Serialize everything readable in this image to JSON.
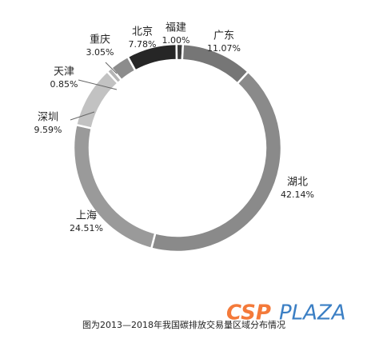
{
  "chart_data": {
    "type": "donut",
    "categories": [
      "福建",
      "广东",
      "湖北",
      "上海",
      "深圳",
      "天津",
      "重庆",
      "北京"
    ],
    "values": [
      1.0,
      11.07,
      42.14,
      24.51,
      9.59,
      0.85,
      3.05,
      7.78
    ],
    "value_labels": [
      "1.00%",
      "11.07%",
      "42.14%",
      "24.51%",
      "9.59%",
      "0.85%",
      "3.05%",
      "7.78%"
    ],
    "colors": [
      "#3a3a3a",
      "#767676",
      "#8a8a8a",
      "#9a9a9a",
      "#c2c2c2",
      "#b5b5b5",
      "#8c8c8c",
      "#262626"
    ]
  },
  "caption": "图为2013—2018年我国碳排放交易量区域分布情况",
  "watermark": {
    "brand": "CSP",
    "suffix": "PLAZA"
  }
}
